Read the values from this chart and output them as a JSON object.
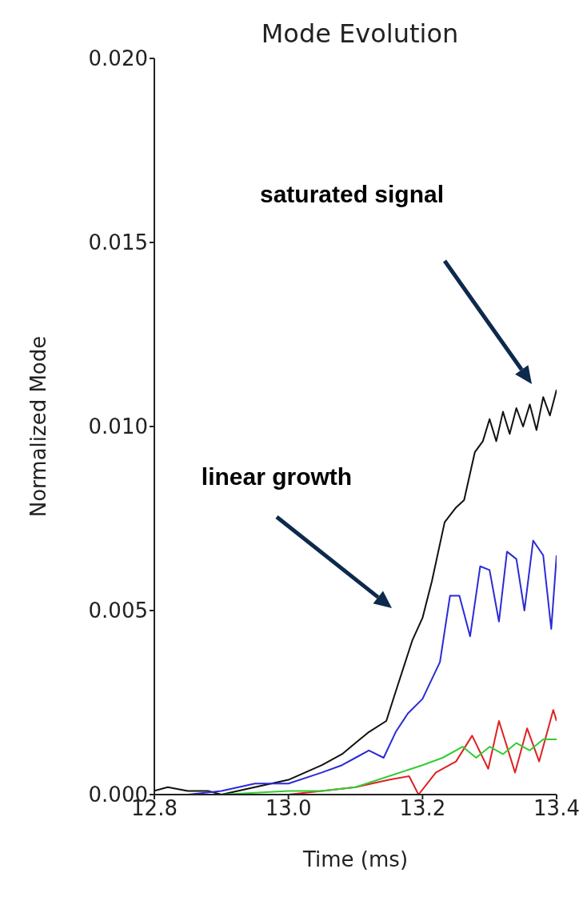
{
  "chart_data": {
    "type": "line",
    "title": "Mode Evolution",
    "xlabel": "Time (ms)",
    "ylabel": "Normalized Mode",
    "xlim": [
      12.8,
      13.4
    ],
    "xticks": [
      12.8,
      {
        "value": 13,
        "label": "13.0"
      },
      13.2,
      13.4
    ],
    "ylim": [
      0,
      0.02
    ],
    "yticks": [
      {
        "value": 0,
        "label": "0.000"
      },
      {
        "value": 0.005,
        "label": "0.005"
      },
      {
        "value": 0.01,
        "label": "0.010"
      },
      {
        "value": 0.015,
        "label": "0.015"
      },
      {
        "value": 0.02,
        "label": "0.020"
      }
    ],
    "line_style": "solid",
    "marker": "none",
    "series": [
      {
        "color": "#111111",
        "x": [
          12.8,
          12.82,
          12.85,
          12.88,
          12.9,
          12.95,
          13.0,
          13.05,
          13.08,
          13.1,
          13.12,
          13.146,
          13.16,
          13.185,
          13.2,
          13.214,
          13.233,
          13.25,
          13.262,
          13.278,
          13.29,
          13.3,
          13.31,
          13.32,
          13.33,
          13.34,
          13.35,
          13.36,
          13.37,
          13.38,
          13.39,
          13.4
        ],
        "values": [
          0.0001,
          0.0002,
          0.0001,
          0.0001,
          0.0,
          0.0002,
          0.0004,
          0.0008,
          0.0011,
          0.0014,
          0.0017,
          0.002,
          0.0028,
          0.0042,
          0.0048,
          0.0058,
          0.0074,
          0.0078,
          0.008,
          0.0093,
          0.0096,
          0.0102,
          0.0096,
          0.0104,
          0.0098,
          0.0105,
          0.01,
          0.0106,
          0.0099,
          0.0108,
          0.0103,
          0.011
        ]
      },
      {
        "color": "#2b2bd6",
        "x": [
          12.8,
          12.85,
          12.9,
          12.95,
          13.0,
          13.05,
          13.08,
          13.1,
          13.12,
          13.142,
          13.16,
          13.178,
          13.2,
          13.226,
          13.241,
          13.255,
          13.271,
          13.286,
          13.3,
          13.314,
          13.326,
          13.34,
          13.352,
          13.365,
          13.38,
          13.392,
          13.4
        ],
        "values": [
          0.0,
          0.0,
          0.0001,
          0.0003,
          0.0003,
          0.0006,
          0.0008,
          0.001,
          0.0012,
          0.001,
          0.0017,
          0.0022,
          0.0026,
          0.0036,
          0.0054,
          0.0054,
          0.0043,
          0.0062,
          0.0061,
          0.0047,
          0.0066,
          0.0064,
          0.005,
          0.0069,
          0.0065,
          0.0045,
          0.0065
        ]
      },
      {
        "color": "#dd2222",
        "x": [
          12.8,
          12.9,
          13.0,
          13.05,
          13.1,
          13.15,
          13.18,
          13.194,
          13.22,
          13.25,
          13.274,
          13.298,
          13.314,
          13.338,
          13.356,
          13.374,
          13.395,
          13.4
        ],
        "values": [
          0.0,
          0.0,
          0.0,
          0.0001,
          0.0002,
          0.0004,
          0.0005,
          0.0,
          0.0006,
          0.0009,
          0.0016,
          0.0007,
          0.002,
          0.0006,
          0.0018,
          0.0009,
          0.0023,
          0.002
        ]
      },
      {
        "color": "#33cc33",
        "x": [
          12.8,
          12.9,
          13.0,
          13.05,
          13.1,
          13.15,
          13.2,
          13.23,
          13.26,
          13.28,
          13.3,
          13.32,
          13.34,
          13.36,
          13.38,
          13.4
        ],
        "values": [
          0.0,
          0.0,
          0.0001,
          0.0001,
          0.0002,
          0.0005,
          0.0008,
          0.001,
          0.0013,
          0.001,
          0.0013,
          0.0011,
          0.0014,
          0.0012,
          0.0015,
          0.0015
        ]
      }
    ],
    "annotations": [
      "saturated signal",
      "linear growth"
    ]
  }
}
